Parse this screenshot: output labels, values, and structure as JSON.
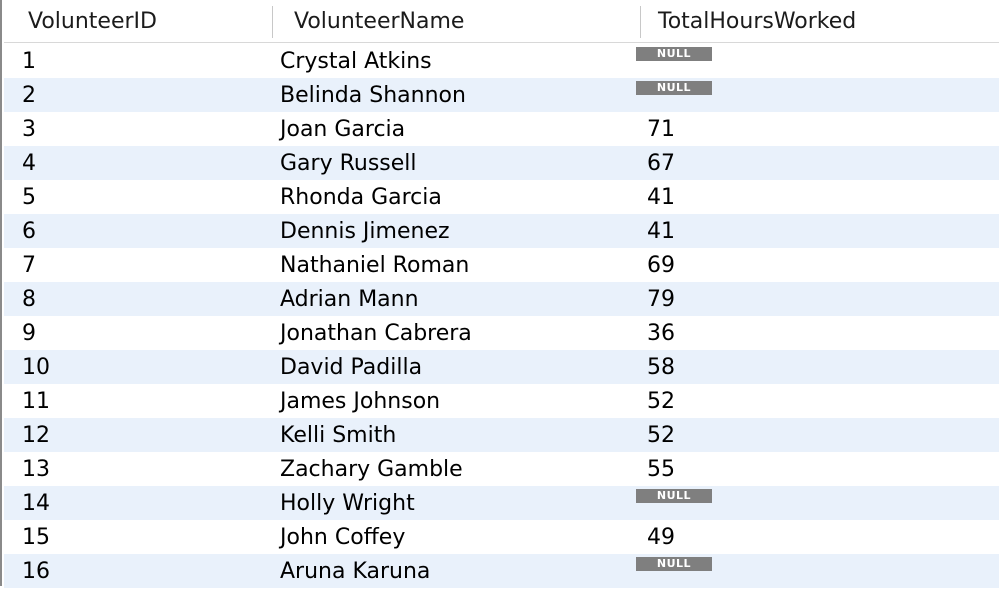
{
  "table": {
    "columns": [
      "VolunteerID",
      "VolunteerName",
      "TotalHoursWorked"
    ],
    "rows": [
      {
        "id": "1",
        "name": "Crystal Atkins",
        "hours": "NULL",
        "is_null": true
      },
      {
        "id": "2",
        "name": "Belinda Shannon",
        "hours": "NULL",
        "is_null": true
      },
      {
        "id": "3",
        "name": "Joan Garcia",
        "hours": "71",
        "is_null": false
      },
      {
        "id": "4",
        "name": "Gary Russell",
        "hours": "67",
        "is_null": false
      },
      {
        "id": "5",
        "name": "Rhonda Garcia",
        "hours": "41",
        "is_null": false
      },
      {
        "id": "6",
        "name": "Dennis Jimenez",
        "hours": "41",
        "is_null": false
      },
      {
        "id": "7",
        "name": "Nathaniel Roman",
        "hours": "69",
        "is_null": false
      },
      {
        "id": "8",
        "name": "Adrian Mann",
        "hours": "79",
        "is_null": false
      },
      {
        "id": "9",
        "name": "Jonathan Cabrera",
        "hours": "36",
        "is_null": false
      },
      {
        "id": "10",
        "name": "David Padilla",
        "hours": "58",
        "is_null": false
      },
      {
        "id": "11",
        "name": "James Johnson",
        "hours": "52",
        "is_null": false
      },
      {
        "id": "12",
        "name": "Kelli Smith",
        "hours": "52",
        "is_null": false
      },
      {
        "id": "13",
        "name": "Zachary Gamble",
        "hours": "55",
        "is_null": false
      },
      {
        "id": "14",
        "name": "Holly Wright",
        "hours": "NULL",
        "is_null": true
      },
      {
        "id": "15",
        "name": "John Coffey",
        "hours": "49",
        "is_null": false
      },
      {
        "id": "16",
        "name": "Aruna Karuna",
        "hours": "NULL",
        "is_null": true
      }
    ]
  },
  "colors": {
    "alt_row": "#e9f1fb",
    "null_badge_bg": "#7f7f7f",
    "null_badge_text": "#ffffff"
  }
}
